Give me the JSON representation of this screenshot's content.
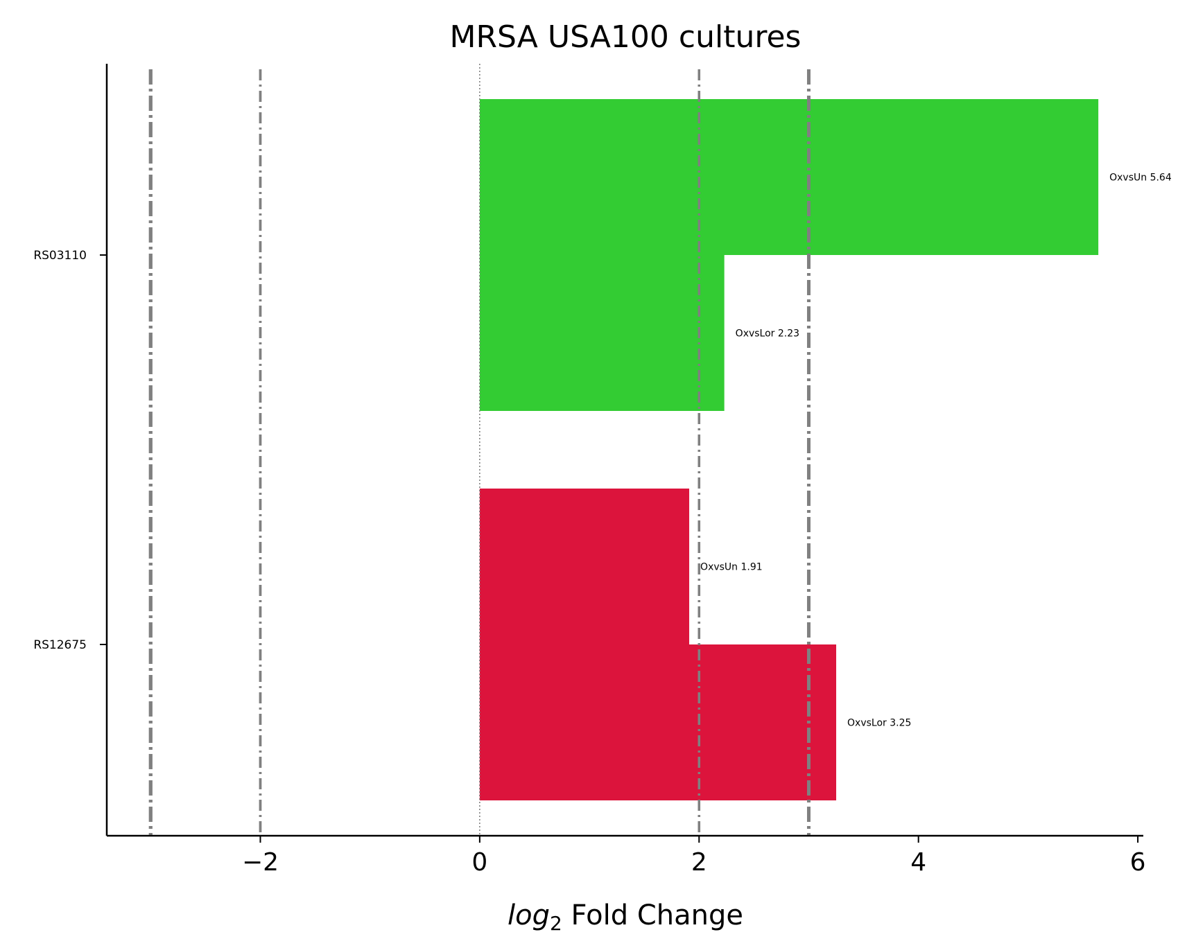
{
  "chart_data": {
    "type": "bar",
    "orientation": "horizontal",
    "title": "MRSA USA100 cultures",
    "xlabel_italic": "log",
    "xlabel_sub": "2",
    "xlabel_rest": " Fold Change",
    "xlim": [
      -3.4,
      6.05
    ],
    "xticks": [
      -2,
      0,
      2,
      4,
      6
    ],
    "xtick_labels": [
      "−2",
      "0",
      "2",
      "4",
      "6"
    ],
    "categories": [
      "RS03110",
      "RS12675"
    ],
    "bars": [
      {
        "category": "RS03110",
        "comparison": "OxvsUn",
        "value": 5.64,
        "label": "OxvsUn 5.64",
        "color": "#33cc33"
      },
      {
        "category": "RS03110",
        "comparison": "OxvsLor",
        "value": 2.23,
        "label": "OxvsLor 2.23",
        "color": "#33cc33"
      },
      {
        "category": "RS12675",
        "comparison": "OxvsUn",
        "value": 1.91,
        "label": "OxvsUn 1.91",
        "color": "#dc143c"
      },
      {
        "category": "RS12675",
        "comparison": "OxvsLor",
        "value": 3.25,
        "label": "OxvsLor 3.25",
        "color": "#dc143c"
      }
    ],
    "reference_lines": [
      {
        "x": -3,
        "style": "dashdot",
        "weight": "thick"
      },
      {
        "x": -2,
        "style": "dashdot",
        "weight": "medium"
      },
      {
        "x": 0,
        "style": "dotted",
        "weight": "thin"
      },
      {
        "x": 2,
        "style": "dashdot",
        "weight": "medium"
      },
      {
        "x": 3,
        "style": "dashdot",
        "weight": "thick"
      }
    ],
    "reference_color": "#808080",
    "grid": false,
    "legend": "none"
  }
}
